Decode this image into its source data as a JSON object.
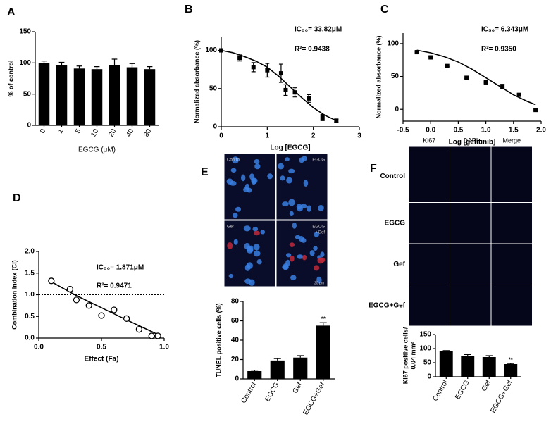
{
  "chart_data": [
    {
      "type": "bar",
      "panel": "A",
      "xlabel": "EGCG (μM)",
      "ylabel": "% of control",
      "categories": [
        "0",
        "1",
        "5",
        "10",
        "20",
        "40",
        "80"
      ],
      "values": [
        100,
        96,
        91,
        90,
        97,
        93,
        90
      ],
      "errors": [
        3,
        5,
        4,
        4,
        9,
        6,
        4
      ],
      "color": "#000000",
      "ylim": [
        0,
        150
      ],
      "yticks": [
        0,
        50,
        100,
        150
      ],
      "rotate_categories": true
    },
    {
      "type": "scatter",
      "panel": "B",
      "xlabel": "Log [EGCG]",
      "ylabel": "Normalized absorbance (%)",
      "annotations": [
        "IC₅₀= 33.82μM",
        "R²= 0.9438"
      ],
      "marker": "square",
      "color": "#000000",
      "x": [
        0,
        0.4,
        0.7,
        1.0,
        1.3,
        1.4,
        1.6,
        1.9,
        2.2,
        2.5
      ],
      "values": [
        100,
        90,
        78,
        74,
        70,
        48,
        45,
        37,
        12,
        8
      ],
      "errors": [
        2,
        4,
        6,
        9,
        12,
        7,
        6,
        5,
        4,
        2
      ],
      "fit": {
        "x": [
          0,
          0.25,
          0.5,
          0.75,
          1.0,
          1.25,
          1.5,
          1.75,
          2.0,
          2.25,
          2.5
        ],
        "values": [
          100,
          97,
          92,
          86,
          78,
          66,
          52,
          38,
          25,
          15,
          8
        ]
      },
      "xlim": [
        0,
        3
      ],
      "xticks": [
        0,
        1,
        2,
        3
      ],
      "ylim": [
        0,
        118
      ],
      "yticks": [
        0,
        50,
        100
      ]
    },
    {
      "type": "scatter",
      "panel": "C",
      "xlabel": "Log [gefitinib]",
      "ylabel": "Normalized absorbance (%)",
      "annotations": [
        "IC₅₀= 6.343μM",
        "R²= 0.9350"
      ],
      "marker": "square",
      "color": "#000000",
      "x": [
        -0.25,
        0,
        0.3,
        0.65,
        1.0,
        1.3,
        1.6,
        1.9
      ],
      "values": [
        87,
        79,
        66,
        48,
        41,
        35,
        22,
        -1
      ],
      "errors": [
        1,
        1,
        1,
        1,
        1,
        3,
        1,
        1
      ],
      "fit": {
        "x": [
          -0.25,
          0,
          0.25,
          0.5,
          0.75,
          1.0,
          1.25,
          1.5,
          1.75,
          1.9
        ],
        "values": [
          90,
          86,
          80,
          72,
          61,
          48,
          35,
          22,
          12,
          7
        ]
      },
      "xlim": [
        -0.5,
        2.0
      ],
      "xticks": [
        {
          "value": -0.5,
          "label": "-0.5"
        },
        {
          "value": 0,
          "label": "0.0"
        },
        {
          "value": 0.5,
          "label": "0.5"
        },
        {
          "value": 1,
          "label": "1.0"
        },
        {
          "value": 1.5,
          "label": "1.5"
        },
        {
          "value": 2,
          "label": "2.0"
        }
      ],
      "ylim": [
        -18,
        116
      ],
      "yticks": [
        0,
        50,
        100
      ]
    },
    {
      "type": "scatter",
      "panel": "D",
      "xlabel": "Effect (Fa)",
      "ylabel": "Combination index (CI)",
      "annotations": [
        "IC₅₀= 1.871μM",
        "R²= 0.9471"
      ],
      "marker": "circle-open",
      "color": "#000000",
      "x": [
        0.1,
        0.25,
        0.3,
        0.4,
        0.5,
        0.6,
        0.7,
        0.8,
        0.9,
        0.95
      ],
      "values": [
        1.32,
        1.13,
        0.88,
        0.75,
        0.52,
        0.65,
        0.45,
        0.2,
        0.05,
        0.05
      ],
      "fit": {
        "x": [
          0.1,
          0.3,
          0.5,
          0.7,
          0.9,
          0.95
        ],
        "values": [
          1.3,
          0.98,
          0.7,
          0.42,
          0.15,
          0.08
        ]
      },
      "hline": 1.0,
      "xlim": [
        0,
        1.0
      ],
      "xticks": [
        {
          "value": 0,
          "label": "0.0"
        },
        {
          "value": 0.5,
          "label": "0.5"
        },
        {
          "value": 1,
          "label": "1.0"
        }
      ],
      "ylim": [
        0,
        2.0
      ],
      "yticks": [
        {
          "value": 0,
          "label": "0.0"
        },
        {
          "value": 0.5,
          "label": "0.5"
        },
        {
          "value": 1,
          "label": "1.0"
        },
        {
          "value": 1.5,
          "label": "1.5"
        },
        {
          "value": 2,
          "label": "2.0"
        }
      ]
    },
    {
      "type": "bar",
      "ylabel": "TUNEL positive cells (%)",
      "categories": [
        "Control",
        "EGCG",
        "Gef",
        "EGCG+Gef"
      ],
      "values": [
        8,
        19,
        22,
        55
      ],
      "errors": [
        1,
        2,
        2,
        3
      ],
      "value_annotations": [
        null,
        null,
        null,
        "**"
      ],
      "color": "#000000",
      "ylim": [
        0,
        80
      ],
      "yticks": [
        0,
        20,
        40,
        60,
        80
      ],
      "rotate_categories": true
    },
    {
      "type": "bar",
      "ylabel": [
        "Ki67 positive cells/",
        "0.04 mm²"
      ],
      "categories": [
        "Control",
        "EGCG",
        "Gef",
        "EGCG+Gef"
      ],
      "values": [
        90,
        75,
        70,
        45
      ],
      "errors": [
        3,
        4,
        5,
        2
      ],
      "value_annotations": [
        null,
        null,
        null,
        "**"
      ],
      "color": "#000000",
      "ylim": [
        0,
        150
      ],
      "yticks": [
        0,
        50,
        100,
        150
      ],
      "rotate_categories": true
    }
  ],
  "micrograph_e": {
    "panel": "E",
    "tile_labels": [
      "Control",
      "EGCG",
      "Gef",
      [
        "EGCG",
        "+Gef"
      ]
    ],
    "scale_bar": "20 μm"
  },
  "micrograph_f": {
    "panel": "F",
    "columns": [
      "Ki67",
      "DAPI",
      "Merge"
    ],
    "rows": [
      "Control",
      "EGCG",
      "Gef",
      "EGCG+Gef"
    ]
  }
}
